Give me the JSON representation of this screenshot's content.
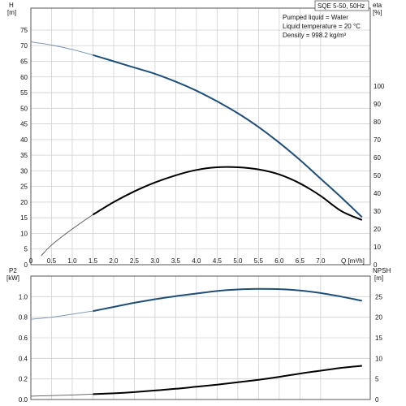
{
  "chart_data": [
    {
      "type": "line",
      "title": "SQE 5-50, 50Hz",
      "info": [
        "Pumped liquid = Water",
        "Liquid temperature = 20 °C",
        "Density = 998.2 kg/m³"
      ],
      "xlabel": "Q [m³/h]",
      "xlim": [
        0,
        8.2
      ],
      "x_ticks": [
        0,
        0.5,
        1.0,
        1.5,
        2.0,
        2.5,
        3.0,
        3.5,
        4.0,
        4.5,
        5.0,
        5.5,
        6.0,
        6.5,
        7.0
      ],
      "x_tick_labels": [
        "0",
        "0.5",
        "1.0",
        "1.5",
        "2.0",
        "2.5",
        "3.0",
        "3.5",
        "4.0",
        "4.5",
        "5.0",
        "5.5",
        "6.0",
        "6.5",
        "7.0"
      ],
      "y_left": {
        "label_line1": "H",
        "label_line2": "[m]",
        "lim": [
          0,
          82
        ],
        "ticks": [
          0,
          5,
          10,
          15,
          20,
          25,
          30,
          35,
          40,
          45,
          50,
          55,
          60,
          65,
          70,
          75
        ]
      },
      "y_right": {
        "label_line1": "eta",
        "label_line2": "[%]",
        "lim": [
          0,
          143.5
        ],
        "ticks": [
          0,
          10,
          20,
          30,
          40,
          50,
          60,
          70,
          80,
          90,
          100
        ]
      },
      "grid": true,
      "series": [
        {
          "name": "H",
          "axis": "left",
          "color": "#1f4e79",
          "x": [
            0,
            0.5,
            1.0,
            1.5,
            2.0,
            2.5,
            3.0,
            3.5,
            4.0,
            4.5,
            5.0,
            5.5,
            6.0,
            6.5,
            7.0,
            7.5,
            8.0
          ],
          "y": [
            71.2,
            70.2,
            68.8,
            67.0,
            65.0,
            63.0,
            61.0,
            58.5,
            55.6,
            52.2,
            48.4,
            44.0,
            39.0,
            33.5,
            27.5,
            21.5,
            15.2
          ],
          "extrapolated_below_x": 1.5
        },
        {
          "name": "eta",
          "axis": "right",
          "color": "#000000",
          "x": [
            0.25,
            0.5,
            1.0,
            1.5,
            2.0,
            2.5,
            3.0,
            3.5,
            4.0,
            4.5,
            5.0,
            5.5,
            6.0,
            6.5,
            7.0,
            7.5,
            8.0
          ],
          "y": [
            5,
            11,
            20,
            28,
            35,
            41,
            46,
            50,
            53,
            54.5,
            54.5,
            53.3,
            50.5,
            45.5,
            38.5,
            30,
            25
          ],
          "extrapolated_below_x": 1.5
        }
      ]
    },
    {
      "type": "line",
      "xlim": [
        0,
        8.2
      ],
      "y_left": {
        "label_line1": "P2",
        "label_line2": "[kW]",
        "lim": [
          0,
          1.2
        ],
        "ticks": [
          0,
          0.2,
          0.4,
          0.6,
          0.8,
          1.0
        ],
        "tick_labels": [
          "0.0",
          "0.2",
          "0.4",
          "0.6",
          "0.8",
          "1.0"
        ]
      },
      "y_right": {
        "label_line1": "NPSH",
        "label_line2": "[m]",
        "lim": [
          0,
          30
        ],
        "ticks": [
          0,
          5,
          10,
          15,
          20,
          25
        ]
      },
      "grid": true,
      "series": [
        {
          "name": "P2",
          "axis": "left",
          "color": "#1f4e79",
          "x": [
            0,
            0.5,
            1.0,
            1.5,
            2.0,
            2.5,
            3.0,
            3.5,
            4.0,
            4.5,
            5.0,
            5.5,
            6.0,
            6.5,
            7.0,
            7.5,
            8.0
          ],
          "y": [
            0.78,
            0.8,
            0.83,
            0.86,
            0.9,
            0.94,
            0.975,
            1.005,
            1.03,
            1.055,
            1.07,
            1.075,
            1.073,
            1.06,
            1.035,
            1.0,
            0.96
          ],
          "extrapolated_below_x": 1.5
        },
        {
          "name": "NPSH",
          "axis": "right",
          "color": "#000000",
          "x": [
            0,
            0.5,
            1.0,
            1.5,
            2.0,
            2.5,
            3.0,
            3.5,
            4.0,
            4.5,
            5.0,
            5.5,
            6.0,
            6.5,
            7.0,
            7.5,
            8.0
          ],
          "y": [
            0.8,
            0.95,
            1.1,
            1.3,
            1.5,
            1.8,
            2.2,
            2.6,
            3.1,
            3.6,
            4.2,
            4.8,
            5.5,
            6.3,
            7.0,
            7.7,
            8.2
          ],
          "extrapolated_below_x": 1.5
        }
      ]
    }
  ]
}
